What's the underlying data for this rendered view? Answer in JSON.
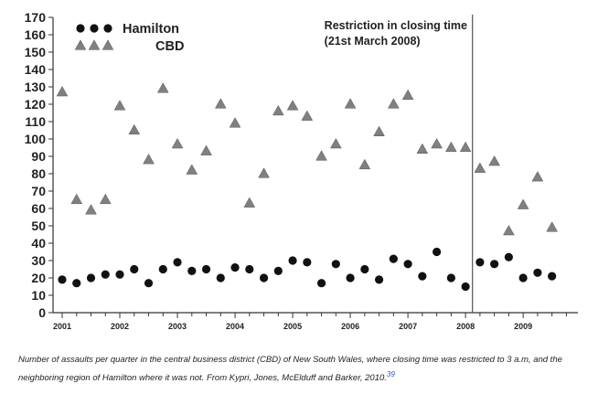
{
  "chart_data": {
    "type": "scatter",
    "title": "",
    "xlabel": "",
    "ylabel": "",
    "ylim": [
      0,
      170
    ],
    "yticks": [
      0,
      10,
      20,
      30,
      40,
      50,
      60,
      70,
      80,
      90,
      100,
      110,
      120,
      130,
      140,
      150,
      160,
      170
    ],
    "xlim": [
      2001,
      2009.95
    ],
    "x_tick_labels": [
      "2001",
      "2002",
      "2003",
      "2004",
      "2005",
      "2006",
      "2007",
      "2008",
      "2009"
    ],
    "x_tick_values": [
      2001,
      2002,
      2003,
      2004,
      2005,
      2006,
      2007,
      2008,
      2009
    ],
    "grid": false,
    "legend_position": "top-left",
    "series": [
      {
        "name": "Hamilton",
        "marker": "circle",
        "color": "#111111",
        "x": [
          2001.0,
          2001.25,
          2001.5,
          2001.75,
          2002.0,
          2002.25,
          2002.5,
          2002.75,
          2003.0,
          2003.25,
          2003.5,
          2003.75,
          2004.0,
          2004.25,
          2004.5,
          2004.75,
          2005.0,
          2005.25,
          2005.5,
          2005.75,
          2006.0,
          2006.25,
          2006.5,
          2006.75,
          2007.0,
          2007.25,
          2007.5,
          2007.75,
          2008.0,
          2008.25,
          2008.5,
          2008.75,
          2009.0,
          2009.25,
          2009.5
        ],
        "y": [
          19,
          17,
          20,
          22,
          22,
          25,
          17,
          25,
          29,
          24,
          25,
          20,
          26,
          25,
          20,
          24,
          30,
          29,
          17,
          28,
          20,
          25,
          19,
          31,
          28,
          21,
          35,
          20,
          15,
          29,
          28,
          32,
          20,
          23,
          21
        ]
      },
      {
        "name": "CBD",
        "marker": "triangle",
        "color": "#808080",
        "x": [
          2001.0,
          2001.25,
          2001.5,
          2001.75,
          2002.0,
          2002.25,
          2002.5,
          2002.75,
          2003.0,
          2003.25,
          2003.5,
          2003.75,
          2004.0,
          2004.25,
          2004.5,
          2004.75,
          2005.0,
          2005.25,
          2005.5,
          2005.75,
          2006.0,
          2006.25,
          2006.5,
          2006.75,
          2007.0,
          2007.25,
          2007.5,
          2007.75,
          2008.0,
          2008.25,
          2008.5,
          2008.75,
          2009.0,
          2009.25,
          2009.5
        ],
        "y": [
          127,
          65,
          59,
          65,
          119,
          105,
          88,
          129,
          97,
          82,
          93,
          120,
          109,
          63,
          80,
          116,
          119,
          113,
          90,
          97,
          120,
          85,
          104,
          120,
          125,
          94,
          97,
          95,
          95,
          83,
          87,
          47,
          62,
          78,
          49
        ]
      }
    ],
    "annotation": {
      "x": 2008.12,
      "line1": "Restriction in closing time",
      "line2": "(21st March 2008)"
    }
  },
  "caption": {
    "text": "Number of assaults per quarter in the central business district (CBD) of New South Wales, where closing time was restricted to 3 a.m, and the neighboring region of Hamilton where it was not. From Kypri, Jones, McElduff and Barker, 2010.",
    "ref": "39"
  }
}
